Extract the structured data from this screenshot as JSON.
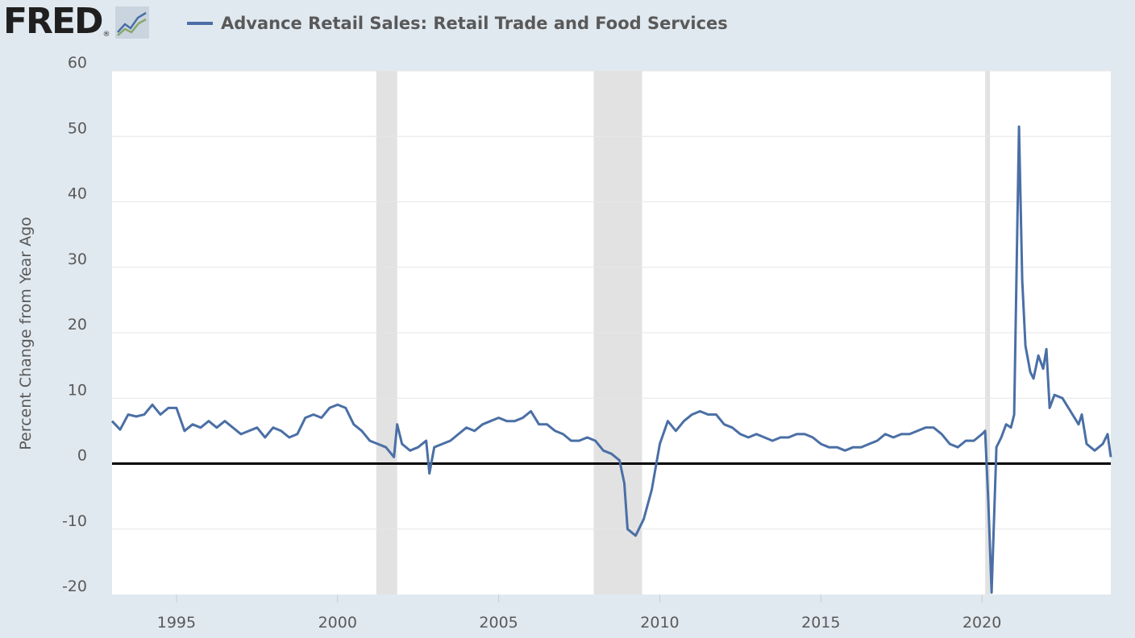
{
  "header": {
    "logo_text": "FRED",
    "logo_reg": "®",
    "legend_label": "Advance Retail Sales: Retail Trade and Food Services",
    "series_color": "#4a6fa5"
  },
  "chart_data": {
    "type": "line",
    "title": "Advance Retail Sales: Retail Trade and Food Services",
    "ylabel": "Percent Change from Year Ago",
    "xlabel": "",
    "xlim": [
      1993.0,
      2024.0
    ],
    "ylim": [
      -20,
      60
    ],
    "y_ticks": [
      -20,
      -10,
      0,
      10,
      20,
      30,
      40,
      50,
      60
    ],
    "x_ticks": [
      1995,
      2000,
      2005,
      2010,
      2015,
      2020
    ],
    "grid": true,
    "recessions": [
      [
        2001.2,
        2001.85
      ],
      [
        2007.95,
        2009.45
      ],
      [
        2020.1,
        2020.25
      ]
    ],
    "series": [
      {
        "name": "Advance Retail Sales: Retail Trade and Food Services",
        "color": "#4a6fa5",
        "x": [
          1993.0,
          1993.25,
          1993.5,
          1993.75,
          1994.0,
          1994.25,
          1994.5,
          1994.75,
          1995.0,
          1995.25,
          1995.5,
          1995.75,
          1996.0,
          1996.25,
          1996.5,
          1996.75,
          1997.0,
          1997.25,
          1997.5,
          1997.75,
          1998.0,
          1998.25,
          1998.5,
          1998.75,
          1999.0,
          1999.25,
          1999.5,
          1999.75,
          2000.0,
          2000.25,
          2000.5,
          2000.75,
          2001.0,
          2001.25,
          2001.5,
          2001.75,
          2001.85,
          2002.0,
          2002.25,
          2002.5,
          2002.75,
          2002.85,
          2003.0,
          2003.25,
          2003.5,
          2003.75,
          2004.0,
          2004.25,
          2004.5,
          2004.75,
          2005.0,
          2005.25,
          2005.5,
          2005.75,
          2006.0,
          2006.25,
          2006.5,
          2006.75,
          2007.0,
          2007.25,
          2007.5,
          2007.75,
          2008.0,
          2008.25,
          2008.5,
          2008.75,
          2008.9,
          2009.0,
          2009.25,
          2009.5,
          2009.75,
          2010.0,
          2010.25,
          2010.5,
          2010.75,
          2011.0,
          2011.25,
          2011.5,
          2011.75,
          2012.0,
          2012.25,
          2012.5,
          2012.75,
          2013.0,
          2013.25,
          2013.5,
          2013.75,
          2014.0,
          2014.25,
          2014.5,
          2014.75,
          2015.0,
          2015.25,
          2015.5,
          2015.75,
          2016.0,
          2016.25,
          2016.5,
          2016.75,
          2017.0,
          2017.25,
          2017.5,
          2017.75,
          2018.0,
          2018.25,
          2018.5,
          2018.75,
          2019.0,
          2019.25,
          2019.5,
          2019.75,
          2020.0,
          2020.1,
          2020.2,
          2020.3,
          2020.45,
          2020.6,
          2020.75,
          2020.9,
          2021.0,
          2021.15,
          2021.25,
          2021.35,
          2021.5,
          2021.6,
          2021.75,
          2021.9,
          2022.0,
          2022.1,
          2022.25,
          2022.5,
          2022.75,
          2023.0,
          2023.1,
          2023.25,
          2023.5,
          2023.75,
          2023.9,
          2024.0
        ],
        "y": [
          6.5,
          5.2,
          7.5,
          7.2,
          7.5,
          9.0,
          7.5,
          8.5,
          8.5,
          5.0,
          6.0,
          5.5,
          6.5,
          5.5,
          6.5,
          5.5,
          4.5,
          5.0,
          5.5,
          4.0,
          5.5,
          5.0,
          4.0,
          4.5,
          7.0,
          7.5,
          7.0,
          8.5,
          9.0,
          8.5,
          6.0,
          5.0,
          3.5,
          3.0,
          2.5,
          1.0,
          6.0,
          3.0,
          2.0,
          2.5,
          3.5,
          -1.5,
          2.5,
          3.0,
          3.5,
          4.5,
          5.5,
          5.0,
          6.0,
          6.5,
          7.0,
          6.5,
          6.5,
          7.0,
          8.0,
          6.0,
          6.0,
          5.0,
          4.5,
          3.5,
          3.5,
          4.0,
          3.5,
          2.0,
          1.5,
          0.5,
          -3.0,
          -10.0,
          -11.0,
          -8.5,
          -4.0,
          3.0,
          6.5,
          5.0,
          6.5,
          7.5,
          8.0,
          7.5,
          7.5,
          6.0,
          5.5,
          4.5,
          4.0,
          4.5,
          4.0,
          3.5,
          4.0,
          4.0,
          4.5,
          4.5,
          4.0,
          3.0,
          2.5,
          2.5,
          2.0,
          2.5,
          2.5,
          3.0,
          3.5,
          4.5,
          4.0,
          4.5,
          4.5,
          5.0,
          5.5,
          5.5,
          4.5,
          3.0,
          2.5,
          3.5,
          3.5,
          4.5,
          5.0,
          -6.0,
          -19.7,
          2.5,
          4.0,
          6.0,
          5.5,
          7.5,
          51.5,
          28.0,
          18.0,
          14.0,
          13.0,
          16.5,
          14.5,
          17.5,
          8.5,
          10.5,
          10.0,
          8.0,
          6.0,
          7.5,
          3.0,
          2.0,
          3.0,
          4.5,
          1.0
        ]
      }
    ]
  }
}
